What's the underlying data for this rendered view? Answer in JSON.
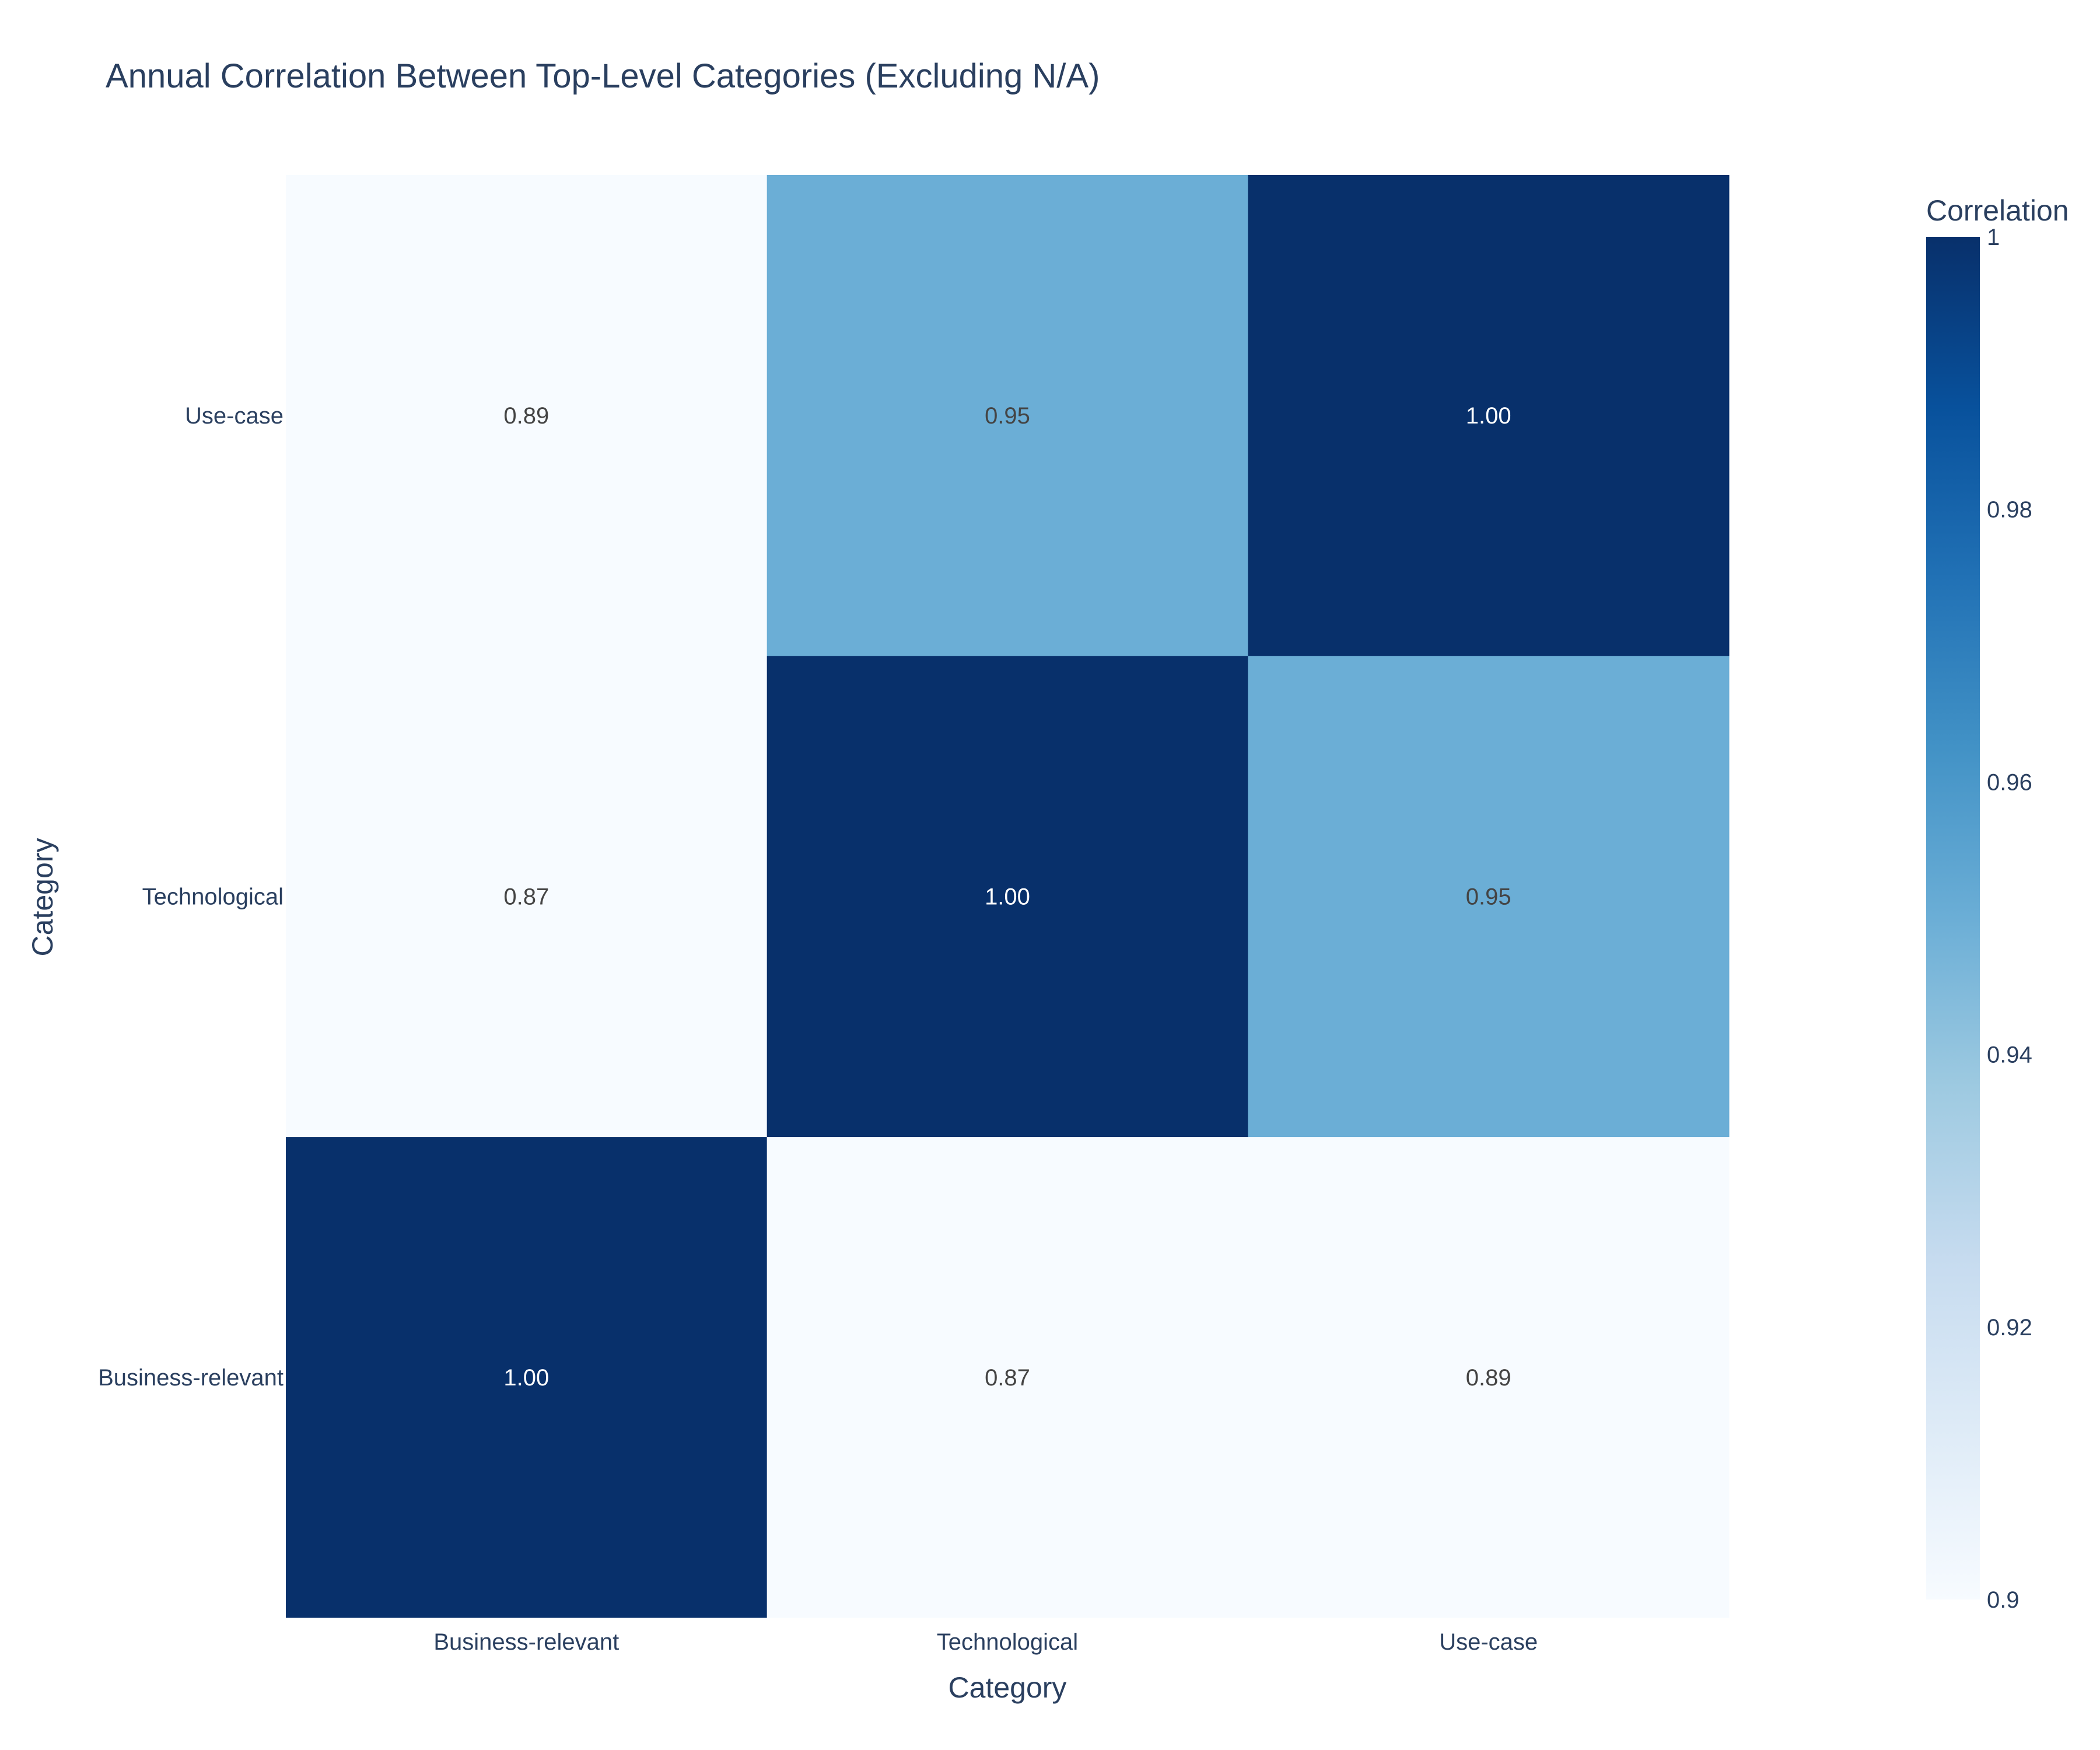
{
  "chart_data": {
    "type": "heatmap",
    "title": "Annual Correlation Between Top-Level Categories (Excluding N/A)",
    "xlabel": "Category",
    "ylabel": "Category",
    "x_categories": [
      "Business-relevant",
      "Technological",
      "Use-case"
    ],
    "y_categories": [
      "Business-relevant",
      "Technological",
      "Use-case"
    ],
    "matrix": [
      [
        1.0,
        0.87,
        0.89
      ],
      [
        0.87,
        1.0,
        0.95
      ],
      [
        0.89,
        0.95,
        1.0
      ]
    ],
    "cell_labels": [
      [
        "1.00",
        "0.87",
        "0.89"
      ],
      [
        "0.87",
        "1.00",
        "0.95"
      ],
      [
        "0.89",
        "0.95",
        "1.00"
      ]
    ],
    "colorscale": "Blues",
    "zrange": [
      0.9,
      1
    ],
    "colorbar": {
      "title": "Correlation",
      "tick_values": [
        0.9,
        0.92,
        0.94,
        0.96,
        0.98,
        1
      ],
      "tick_labels": [
        "0.9",
        "0.92",
        "0.94",
        "0.96",
        "0.98",
        "1"
      ]
    },
    "grid": false,
    "legend": "colorbar-right"
  },
  "colors": {
    "text": "#2a3f5f",
    "cell_text_light": "#ffffff",
    "cell_text_dark": "#444444",
    "background": "#ffffff"
  }
}
